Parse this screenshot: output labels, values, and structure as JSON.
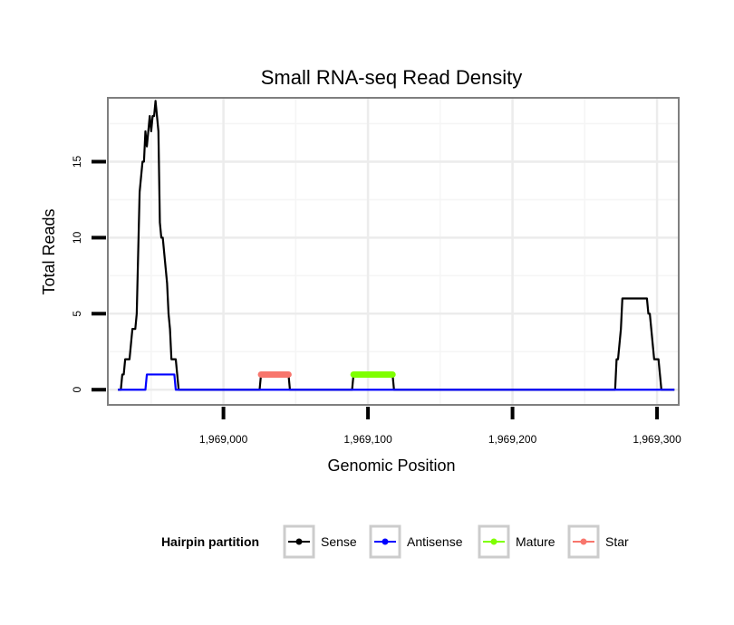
{
  "chart_data": {
    "type": "line",
    "title": "Small RNA-seq Read Density",
    "xlabel": "Genomic Position",
    "ylabel": "Total Reads",
    "xlim": [
      1968920,
      1969315
    ],
    "ylim": [
      -1,
      19.2
    ],
    "x_ticks": [
      1969000,
      1969100,
      1969200,
      1969300
    ],
    "x_tick_labels": [
      "1,969,000",
      "1,969,100",
      "1,969,200",
      "1,969,300"
    ],
    "y_ticks": [
      0,
      5,
      10,
      15
    ],
    "y_tick_labels": [
      "0",
      "5",
      "10",
      "15"
    ],
    "x_minor_gridlines": [
      1968950,
      1969050,
      1969150,
      1969250
    ],
    "y_minor_gridlines": [
      2.5,
      7.5,
      12.5,
      17.5
    ],
    "grid": true,
    "legend": {
      "title": "Hairpin partition",
      "position": "bottom",
      "entries": [
        "Sense",
        "Antisense",
        "Mature",
        "Star"
      ]
    },
    "series": [
      {
        "name": "Sense",
        "color": "#000000",
        "x": [
          1968927,
          1968929,
          1968930,
          1968931,
          1968932,
          1968935,
          1968936,
          1968937,
          1968939,
          1968940,
          1968941,
          1968942,
          1968943,
          1968944,
          1968945,
          1968946,
          1968947,
          1968948,
          1968949,
          1968950,
          1968951,
          1968952,
          1968953,
          1968954,
          1968955,
          1968956,
          1968957,
          1968958,
          1968959,
          1968960,
          1968961,
          1968962,
          1968963,
          1968964,
          1968965,
          1968966,
          1968967,
          1968968,
          1968969,
          1968970,
          1968971,
          1968972,
          1968973,
          1968974,
          1968975,
          1968976,
          1968977,
          1968978,
          1968979,
          1968980,
          1969025,
          1969026,
          1969027,
          1969045,
          1969046,
          1969089,
          1969090,
          1969091,
          1969117,
          1969118,
          1969119,
          1969270,
          1969271,
          1969272,
          1969273,
          1969274,
          1969275,
          1969276,
          1969277,
          1969278,
          1969279,
          1969280,
          1969281,
          1969282,
          1969283,
          1969284,
          1969285,
          1969286,
          1969287,
          1969288,
          1969289,
          1969290,
          1969291,
          1969292,
          1969293,
          1969294,
          1969295,
          1969296,
          1969297,
          1969298,
          1969299,
          1969300,
          1969301,
          1969302,
          1969303,
          1969304,
          1969305,
          1969306,
          1969307,
          1969308,
          1969309,
          1969310,
          1969311,
          1969312
        ],
        "y": [
          0,
          0,
          1,
          1,
          2,
          2,
          3,
          4,
          4,
          5,
          9,
          13,
          14,
          15,
          15,
          17,
          16,
          17,
          18,
          17,
          18,
          18,
          19,
          18,
          17,
          11,
          10,
          10,
          9,
          8,
          7,
          5,
          4,
          2,
          2,
          2,
          2,
          1,
          0,
          0,
          0,
          0,
          0,
          0,
          0,
          0,
          0,
          0,
          0,
          0,
          0,
          1,
          1,
          1,
          0,
          0,
          1,
          1,
          1,
          0,
          0,
          0,
          0,
          2,
          2,
          3,
          4,
          6,
          6,
          6,
          6,
          6,
          6,
          6,
          6,
          6,
          6,
          6,
          6,
          6,
          6,
          6,
          6,
          6,
          6,
          5,
          5,
          4,
          3,
          2,
          2,
          2,
          2,
          1,
          0,
          0,
          0,
          0,
          0,
          0,
          0,
          0,
          0,
          0
        ]
      },
      {
        "name": "Antisense",
        "color": "#0000ff",
        "x": [
          1968927,
          1968946,
          1968947,
          1968966,
          1968967,
          1969312
        ],
        "y": [
          0,
          0,
          1,
          1,
          0,
          0
        ]
      },
      {
        "name": "Mature",
        "color": "#7fff00",
        "x": [
          1969090,
          1969117
        ],
        "y": [
          1,
          1
        ]
      },
      {
        "name": "Star",
        "color": "#f8766d",
        "x": [
          1969026,
          1969045
        ],
        "y": [
          1,
          1
        ]
      }
    ]
  }
}
